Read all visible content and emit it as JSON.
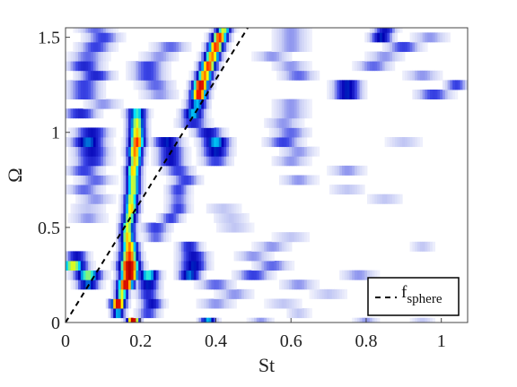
{
  "chart_data": {
    "type": "heatmap",
    "xlabel": "St",
    "ylabel": "Ω",
    "xlim": [
      0,
      1.07
    ],
    "ylim": [
      0,
      1.55
    ],
    "x_ticks": [
      0,
      0.2,
      0.4,
      0.6,
      0.8,
      1
    ],
    "x_tick_labels": [
      "0",
      "0.2",
      "0.4",
      "0.6",
      "0.8",
      "1"
    ],
    "y_ticks": [
      0,
      0.5,
      1,
      1.5
    ],
    "y_tick_labels": [
      "0",
      "0.5",
      "1",
      "1.5"
    ],
    "grid": false,
    "colormap": [
      "#ffffff",
      "#c8cdf5",
      "#3c46e6",
      "#0000b4",
      "#00e6ff",
      "#ffff00",
      "#ff2000",
      "#b40000"
    ],
    "rows": [
      {
        "omega": 0.0,
        "peaks": [
          [
            0.18,
            1.0,
            0.012
          ],
          [
            0.38,
            0.55,
            0.015
          ],
          [
            0.52,
            0.2,
            0.02
          ],
          [
            0.8,
            0.2,
            0.02
          ],
          [
            0.95,
            0.15,
            0.02
          ]
        ]
      },
      {
        "omega": 0.05,
        "peaks": [
          [
            0.14,
            0.55,
            0.012
          ],
          [
            0.22,
            0.3,
            0.02
          ],
          [
            0.62,
            0.15,
            0.02
          ]
        ]
      },
      {
        "omega": 0.1,
        "peaks": [
          [
            0.14,
            0.95,
            0.014
          ],
          [
            0.23,
            0.4,
            0.02
          ],
          [
            0.4,
            0.2,
            0.03
          ],
          [
            0.58,
            0.15,
            0.03
          ]
        ]
      },
      {
        "omega": 0.15,
        "peaks": [
          [
            0.15,
            0.7,
            0.012
          ],
          [
            0.22,
            0.35,
            0.02
          ],
          [
            0.45,
            0.2,
            0.03
          ],
          [
            0.7,
            0.15,
            0.03
          ]
        ]
      },
      {
        "omega": 0.2,
        "peaks": [
          [
            0.16,
            0.95,
            0.016
          ],
          [
            0.06,
            0.5,
            0.02
          ],
          [
            0.22,
            0.45,
            0.02
          ],
          [
            0.4,
            0.25,
            0.03
          ],
          [
            0.62,
            0.2,
            0.03
          ]
        ]
      },
      {
        "omega": 0.25,
        "peaks": [
          [
            0.17,
            1.0,
            0.018
          ],
          [
            0.06,
            0.65,
            0.025
          ],
          [
            0.22,
            0.6,
            0.02
          ],
          [
            0.33,
            0.5,
            0.02
          ],
          [
            0.5,
            0.3,
            0.03
          ],
          [
            0.78,
            0.2,
            0.03
          ]
        ]
      },
      {
        "omega": 0.3,
        "peaks": [
          [
            0.17,
            1.0,
            0.02
          ],
          [
            0.02,
            0.7,
            0.025
          ],
          [
            0.34,
            0.45,
            0.025
          ],
          [
            0.55,
            0.25,
            0.03
          ]
        ]
      },
      {
        "omega": 0.35,
        "peaks": [
          [
            0.17,
            0.85,
            0.018
          ],
          [
            0.03,
            0.4,
            0.02
          ],
          [
            0.34,
            0.4,
            0.025
          ],
          [
            0.5,
            0.2,
            0.03
          ]
        ]
      },
      {
        "omega": 0.4,
        "peaks": [
          [
            0.17,
            0.8,
            0.016
          ],
          [
            0.33,
            0.35,
            0.02
          ],
          [
            0.55,
            0.2,
            0.03
          ],
          [
            0.95,
            0.15,
            0.02
          ]
        ]
      },
      {
        "omega": 0.45,
        "peaks": [
          [
            0.165,
            0.75,
            0.014
          ],
          [
            0.24,
            0.25,
            0.02
          ],
          [
            0.6,
            0.15,
            0.03
          ]
        ]
      },
      {
        "omega": 0.5,
        "peaks": [
          [
            0.165,
            0.7,
            0.014
          ],
          [
            0.24,
            0.3,
            0.025
          ],
          [
            0.45,
            0.15,
            0.03
          ]
        ]
      },
      {
        "omega": 0.55,
        "peaks": [
          [
            0.17,
            0.7,
            0.014
          ],
          [
            0.06,
            0.2,
            0.03
          ],
          [
            0.28,
            0.3,
            0.02
          ],
          [
            0.44,
            0.15,
            0.03
          ]
        ]
      },
      {
        "omega": 0.6,
        "peaks": [
          [
            0.175,
            0.75,
            0.014
          ],
          [
            0.06,
            0.15,
            0.03
          ],
          [
            0.3,
            0.3,
            0.02
          ],
          [
            0.42,
            0.15,
            0.03
          ]
        ]
      },
      {
        "omega": 0.65,
        "peaks": [
          [
            0.175,
            0.7,
            0.014
          ],
          [
            0.08,
            0.2,
            0.03
          ],
          [
            0.3,
            0.25,
            0.02
          ],
          [
            0.85,
            0.15,
            0.03
          ]
        ]
      },
      {
        "omega": 0.7,
        "peaks": [
          [
            0.18,
            0.7,
            0.014
          ],
          [
            0.05,
            0.25,
            0.03
          ],
          [
            0.3,
            0.3,
            0.02
          ],
          [
            0.75,
            0.15,
            0.03
          ]
        ]
      },
      {
        "omega": 0.75,
        "peaks": [
          [
            0.18,
            0.7,
            0.014
          ],
          [
            0.08,
            0.25,
            0.03
          ],
          [
            0.32,
            0.3,
            0.025
          ],
          [
            0.62,
            0.2,
            0.03
          ]
        ]
      },
      {
        "omega": 0.8,
        "peaks": [
          [
            0.18,
            0.75,
            0.014
          ],
          [
            0.05,
            0.3,
            0.03
          ],
          [
            0.3,
            0.3,
            0.025
          ],
          [
            0.75,
            0.2,
            0.03
          ]
        ]
      },
      {
        "omega": 0.85,
        "peaks": [
          [
            0.185,
            0.75,
            0.014
          ],
          [
            0.07,
            0.35,
            0.03
          ],
          [
            0.28,
            0.4,
            0.025
          ],
          [
            0.4,
            0.3,
            0.025
          ],
          [
            0.6,
            0.2,
            0.03
          ]
        ]
      },
      {
        "omega": 0.9,
        "peaks": [
          [
            0.185,
            0.8,
            0.015
          ],
          [
            0.07,
            0.4,
            0.03
          ],
          [
            0.28,
            0.4,
            0.025
          ],
          [
            0.4,
            0.45,
            0.025
          ],
          [
            0.62,
            0.2,
            0.03
          ]
        ]
      },
      {
        "omega": 0.95,
        "peaks": [
          [
            0.19,
            0.85,
            0.016
          ],
          [
            0.06,
            0.5,
            0.03
          ],
          [
            0.27,
            0.45,
            0.025
          ],
          [
            0.4,
            0.55,
            0.025
          ],
          [
            0.58,
            0.3,
            0.03
          ],
          [
            0.9,
            0.15,
            0.03
          ]
        ]
      },
      {
        "omega": 1.0,
        "peaks": [
          [
            0.19,
            0.75,
            0.016
          ],
          [
            0.07,
            0.4,
            0.03
          ],
          [
            0.38,
            0.4,
            0.025
          ],
          [
            0.6,
            0.25,
            0.03
          ]
        ]
      },
      {
        "omega": 1.05,
        "peaks": [
          [
            0.19,
            0.7,
            0.016
          ],
          [
            0.34,
            0.35,
            0.025
          ],
          [
            0.58,
            0.2,
            0.03
          ]
        ]
      },
      {
        "omega": 1.1,
        "peaks": [
          [
            0.19,
            0.6,
            0.018
          ],
          [
            0.04,
            0.35,
            0.03
          ],
          [
            0.34,
            0.55,
            0.02
          ],
          [
            0.6,
            0.2,
            0.03
          ]
        ]
      },
      {
        "omega": 1.15,
        "peaks": [
          [
            0.35,
            0.55,
            0.018
          ],
          [
            0.1,
            0.2,
            0.03
          ],
          [
            0.6,
            0.2,
            0.03
          ]
        ]
      },
      {
        "omega": 1.2,
        "peaks": [
          [
            0.355,
            0.9,
            0.016
          ],
          [
            0.05,
            0.3,
            0.03
          ],
          [
            0.25,
            0.2,
            0.03
          ],
          [
            0.75,
            0.45,
            0.025
          ],
          [
            0.98,
            0.3,
            0.03
          ]
        ]
      },
      {
        "omega": 1.25,
        "peaks": [
          [
            0.36,
            0.95,
            0.016
          ],
          [
            0.05,
            0.3,
            0.03
          ],
          [
            0.24,
            0.25,
            0.03
          ],
          [
            0.75,
            0.45,
            0.025
          ],
          [
            1.04,
            0.3,
            0.02
          ]
        ]
      },
      {
        "omega": 1.3,
        "peaks": [
          [
            0.37,
            0.8,
            0.016
          ],
          [
            0.08,
            0.35,
            0.03
          ],
          [
            0.22,
            0.3,
            0.03
          ],
          [
            0.62,
            0.25,
            0.03
          ],
          [
            0.95,
            0.2,
            0.03
          ]
        ]
      },
      {
        "omega": 1.35,
        "peaks": [
          [
            0.38,
            0.85,
            0.016
          ],
          [
            0.05,
            0.35,
            0.03
          ],
          [
            0.22,
            0.3,
            0.03
          ],
          [
            0.6,
            0.2,
            0.03
          ],
          [
            0.82,
            0.25,
            0.03
          ]
        ]
      },
      {
        "omega": 1.4,
        "peaks": [
          [
            0.39,
            0.8,
            0.016
          ],
          [
            0.06,
            0.25,
            0.03
          ],
          [
            0.25,
            0.2,
            0.03
          ],
          [
            0.55,
            0.2,
            0.03
          ],
          [
            0.85,
            0.2,
            0.03
          ]
        ]
      },
      {
        "omega": 1.45,
        "peaks": [
          [
            0.4,
            0.85,
            0.016
          ],
          [
            0.08,
            0.3,
            0.03
          ],
          [
            0.28,
            0.25,
            0.03
          ],
          [
            0.6,
            0.2,
            0.03
          ],
          [
            0.9,
            0.3,
            0.03
          ]
        ]
      },
      {
        "omega": 1.5,
        "peaks": [
          [
            0.41,
            0.85,
            0.016
          ],
          [
            0.1,
            0.3,
            0.03
          ],
          [
            0.6,
            0.2,
            0.03
          ],
          [
            0.84,
            0.45,
            0.02
          ],
          [
            0.97,
            0.2,
            0.03
          ]
        ]
      },
      {
        "omega": 1.55,
        "peaks": [
          [
            0.42,
            0.7,
            0.016
          ],
          [
            0.08,
            0.25,
            0.03
          ],
          [
            0.6,
            0.2,
            0.03
          ],
          [
            0.85,
            0.4,
            0.02
          ]
        ]
      }
    ],
    "series": [
      {
        "name": "f",
        "name_subscript": "sphere",
        "style": "dashed",
        "color": "#000000",
        "x": [
          0,
          0.485
        ],
        "y": [
          0,
          1.55
        ]
      }
    ],
    "legend": {
      "placement": "bottom-right"
    }
  }
}
